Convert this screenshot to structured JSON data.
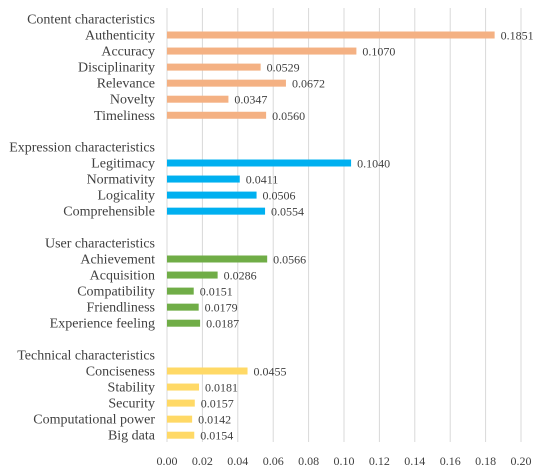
{
  "chart_data": {
    "type": "bar",
    "orientation": "horizontal",
    "xlim": [
      0,
      0.2
    ],
    "xticks": [
      "0.00",
      "0.02",
      "0.04",
      "0.06",
      "0.08",
      "0.10",
      "0.12",
      "0.14",
      "0.16",
      "0.18",
      "0.20"
    ],
    "grid": true,
    "groups": [
      {
        "name": "Content characteristics",
        "color": "#F4B183",
        "items": [
          {
            "label": "Authenticity",
            "value": 0.1851,
            "value_label": "0.1851"
          },
          {
            "label": "Accuracy",
            "value": 0.107,
            "value_label": "0.1070"
          },
          {
            "label": "Disciplinarity",
            "value": 0.0529,
            "value_label": "0.0529"
          },
          {
            "label": "Relevance",
            "value": 0.0672,
            "value_label": "0.0672"
          },
          {
            "label": "Novelty",
            "value": 0.0347,
            "value_label": "0.0347"
          },
          {
            "label": "Timeliness",
            "value": 0.056,
            "value_label": "0.0560"
          }
        ]
      },
      {
        "name": "Expression characteristics",
        "color": "#00B0F0",
        "items": [
          {
            "label": "Legitimacy",
            "value": 0.104,
            "value_label": "0.1040"
          },
          {
            "label": "Normativity",
            "value": 0.0411,
            "value_label": "0.0411"
          },
          {
            "label": "Logicality",
            "value": 0.0506,
            "value_label": "0.0506"
          },
          {
            "label": "Comprehensible",
            "value": 0.0554,
            "value_label": "0.0554"
          }
        ]
      },
      {
        "name": "User characteristics",
        "color": "#70AD47",
        "items": [
          {
            "label": "Achievement",
            "value": 0.0566,
            "value_label": "0.0566"
          },
          {
            "label": "Acquisition",
            "value": 0.0286,
            "value_label": "0.0286"
          },
          {
            "label": "Compatibility",
            "value": 0.0151,
            "value_label": "0.0151"
          },
          {
            "label": "Friendliness",
            "value": 0.0179,
            "value_label": "0.0179"
          },
          {
            "label": "Experience feeling",
            "value": 0.0187,
            "value_label": "0.0187"
          }
        ]
      },
      {
        "name": "Technical characteristics",
        "color": "#FFD966",
        "items": [
          {
            "label": "Conciseness",
            "value": 0.0455,
            "value_label": "0.0455"
          },
          {
            "label": "Stability",
            "value": 0.0181,
            "value_label": "0.0181"
          },
          {
            "label": "Security",
            "value": 0.0157,
            "value_label": "0.0157"
          },
          {
            "label": "Computational power",
            "value": 0.0142,
            "value_label": "0.0142"
          },
          {
            "label": "Big data",
            "value": 0.0154,
            "value_label": "0.0154"
          }
        ]
      }
    ]
  }
}
